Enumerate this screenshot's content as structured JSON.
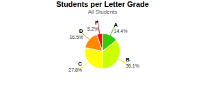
{
  "chart_data": {
    "type": "pie",
    "title": "Students per Letter Grade",
    "subtitle": "All Students",
    "categories": [
      "A",
      "B",
      "C",
      "D",
      "F"
    ],
    "values": [
      14.4,
      36.1,
      27.8,
      16.5,
      5.2
    ],
    "value_labels": [
      "14.4%",
      "36.1%",
      "27.8%",
      "16.5%",
      "5.2%"
    ],
    "colors": [
      "#33cc00",
      "#ccff00",
      "#ffff00",
      "#ff8800",
      "#ee1111"
    ],
    "data_labels": true
  }
}
